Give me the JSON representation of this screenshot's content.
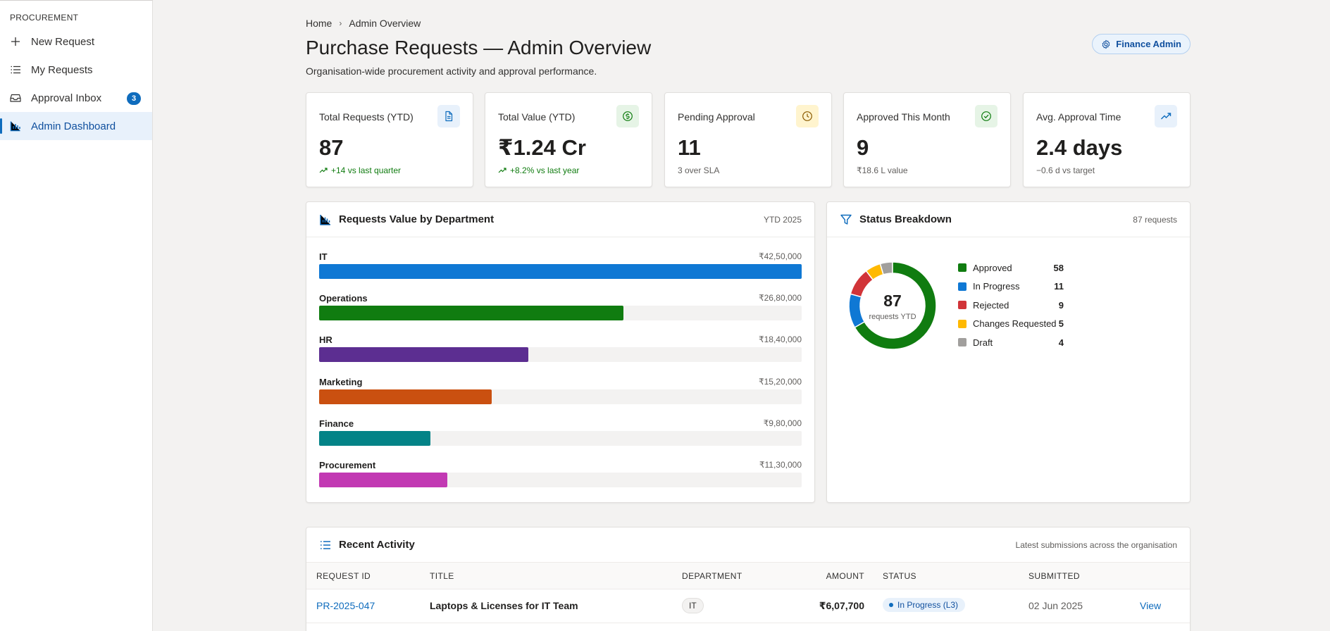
{
  "sidebar": {
    "section": "PROCUREMENT",
    "items": [
      {
        "label": "New Request",
        "icon": "plus-icon"
      },
      {
        "label": "My Requests",
        "icon": "list-icon"
      },
      {
        "label": "Approval Inbox",
        "icon": "inbox-icon",
        "badge": "3"
      },
      {
        "label": "Admin Dashboard",
        "icon": "bar-chart-icon",
        "active": true
      }
    ]
  },
  "breadcrumb": {
    "home": "Home",
    "current": "Admin Overview"
  },
  "header": {
    "title": "Purchase Requests — Admin Overview",
    "subtitle": "Organisation-wide procurement activity and approval performance.",
    "role_button": "Finance Admin"
  },
  "kpis": [
    {
      "label": "Total Requests (YTD)",
      "value": "87",
      "delta": "+14 vs last quarter",
      "trend": "up",
      "icon": "document-icon",
      "icon_color": "#0f6cbd",
      "icon_bg": "#e8f1fb"
    },
    {
      "label": "Total Value (YTD)",
      "value": "₹1.24 Cr",
      "delta": "+8.2% vs last year",
      "trend": "up",
      "icon": "currency-icon",
      "icon_color": "#107c10",
      "icon_bg": "#e6f4e6"
    },
    {
      "label": "Pending Approval",
      "value": "11",
      "delta": "3 over SLA",
      "trend": "none",
      "icon": "clock-icon",
      "icon_color": "#8a5a00",
      "icon_bg": "#fff4ce"
    },
    {
      "label": "Approved This Month",
      "value": "9",
      "delta": "₹18.6 L value",
      "trend": "none",
      "icon": "check-circle-icon",
      "icon_color": "#107c10",
      "icon_bg": "#e6f4e6"
    },
    {
      "label": "Avg. Approval Time",
      "value": "2.4 days",
      "delta": "−0.6 d vs target",
      "trend": "none",
      "icon": "trend-up-icon",
      "icon_color": "#0f6cbd",
      "icon_bg": "#e8f1fb"
    }
  ],
  "dept_card": {
    "title": "Requests Value by Department",
    "meta": "YTD 2025"
  },
  "status_card": {
    "title": "Status Breakdown",
    "meta": "87 requests",
    "center_value": "87",
    "center_label": "requests YTD"
  },
  "chart_data": [
    {
      "type": "bar",
      "title": "Requests Value by Department",
      "categories": [
        "IT",
        "Operations",
        "HR",
        "Marketing",
        "Finance",
        "Procurement"
      ],
      "values": [
        4250000,
        2680000,
        1840000,
        1520000,
        980000,
        1130000
      ],
      "value_labels": [
        "₹42,50,000",
        "₹26,80,000",
        "₹18,40,000",
        "₹15,20,000",
        "₹9,80,000",
        "₹11,30,000"
      ],
      "colors": [
        "#0f78d4",
        "#107c10",
        "#5c2e91",
        "#ca5010",
        "#038387",
        "#c239b3"
      ],
      "orientation": "horizontal",
      "xlim": [
        0,
        4250000
      ]
    },
    {
      "type": "pie",
      "title": "Status Breakdown",
      "donut": true,
      "labels": [
        "Approved",
        "In Progress",
        "Rejected",
        "Changes Requested",
        "Draft"
      ],
      "values": [
        58,
        11,
        9,
        5,
        4
      ],
      "colors": [
        "#107c10",
        "#0f78d4",
        "#d13438",
        "#ffb900",
        "#a19f9d"
      ],
      "legend_position": "right"
    }
  ],
  "activity": {
    "title": "Recent Activity",
    "meta": "Latest submissions across the organisation",
    "columns": [
      "REQUEST ID",
      "TITLE",
      "DEPARTMENT",
      "AMOUNT",
      "STATUS",
      "SUBMITTED"
    ],
    "rows": [
      {
        "id": "PR-2025-047",
        "title": "Laptops & Licenses for IT Team",
        "dept": "IT",
        "amount": "₹6,07,700",
        "status": "In Progress (L3)",
        "submitted": "02 Jun 2025",
        "action": "View"
      }
    ]
  }
}
